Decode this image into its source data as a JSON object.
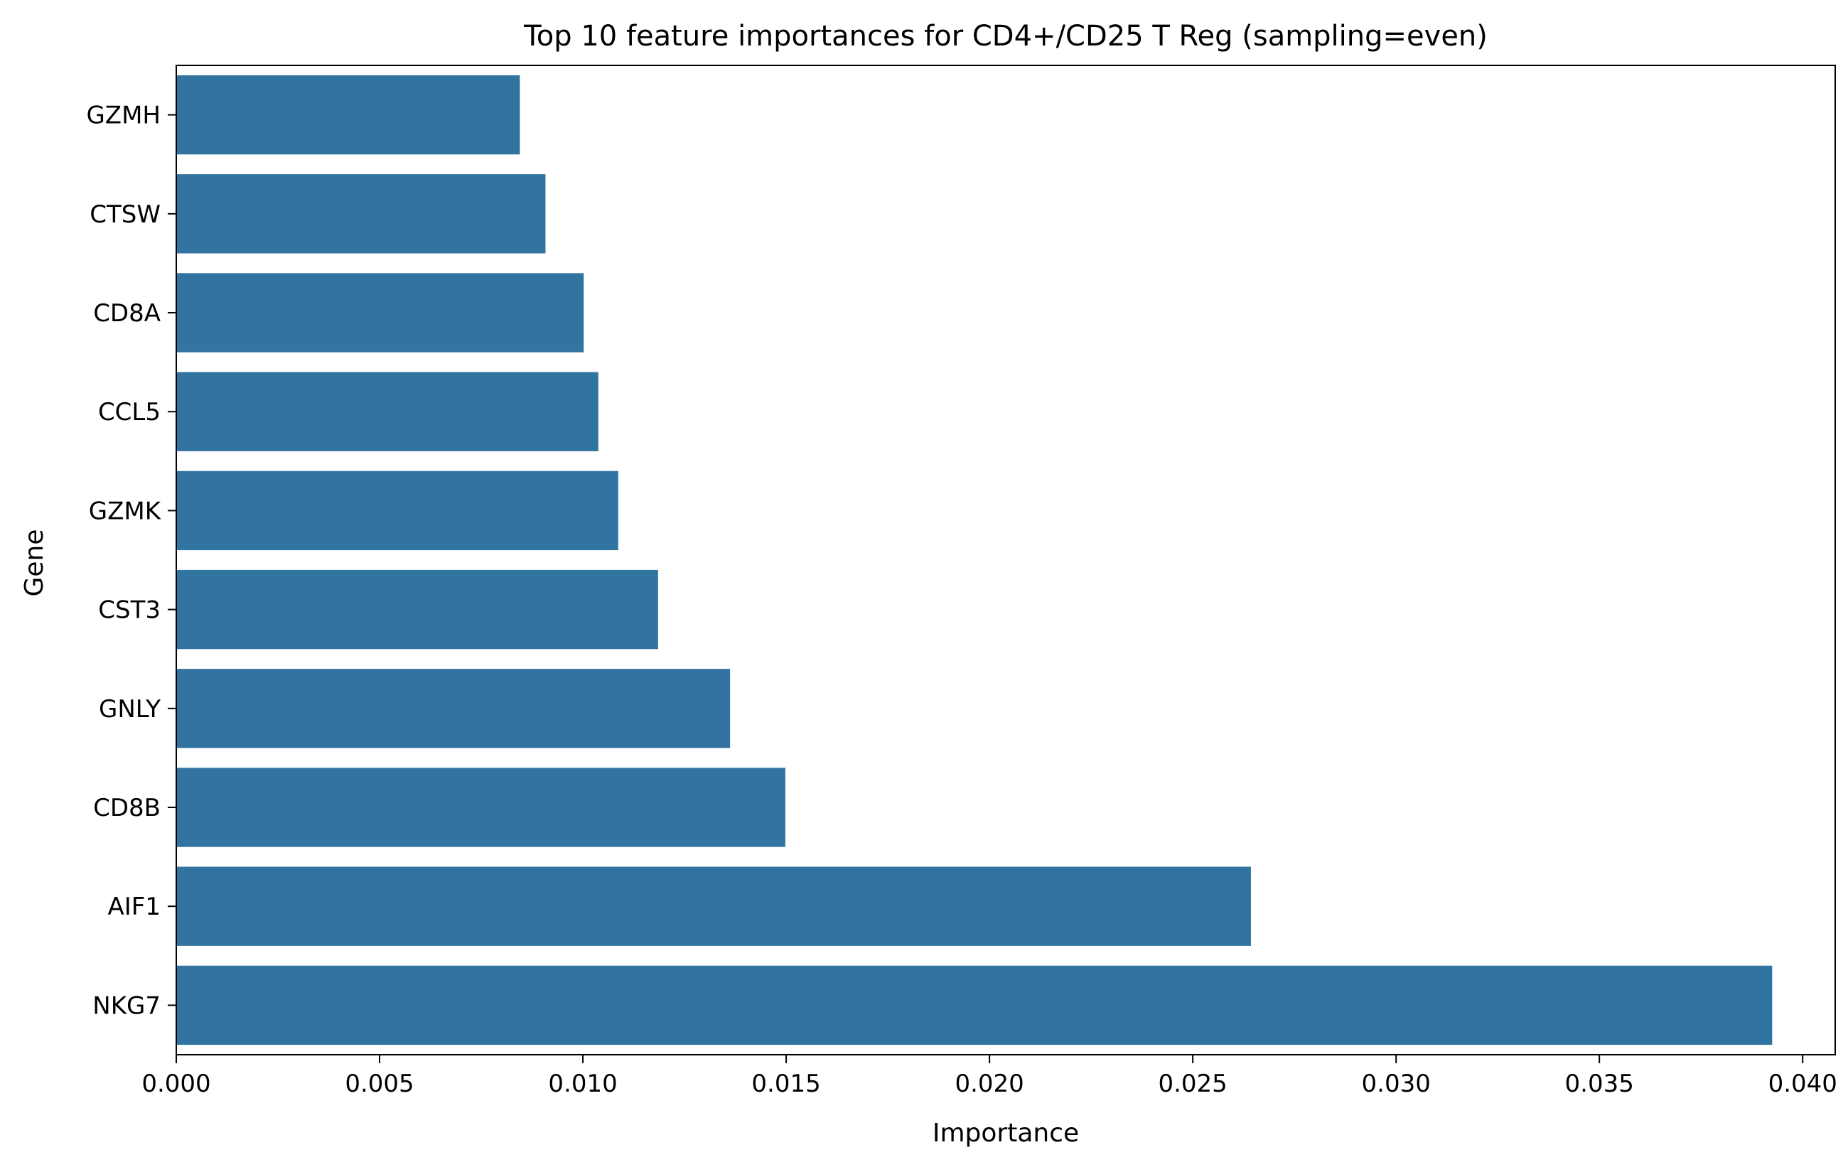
{
  "chart_data": {
    "type": "bar",
    "orientation": "horizontal",
    "title": "Top 10 feature importances for CD4+/CD25 T Reg (sampling=even)",
    "xlabel": "Importance",
    "ylabel": "Gene",
    "categories": [
      "GZMH",
      "CTSW",
      "CD8A",
      "CCL5",
      "GZMK",
      "CST3",
      "GNLY",
      "CD8B",
      "AIF1",
      "NKG7"
    ],
    "values": [
      0.00845,
      0.00908,
      0.01002,
      0.01038,
      0.01087,
      0.01185,
      0.01362,
      0.01498,
      0.02643,
      0.03925
    ],
    "xlim": [
      0.0,
      0.0408
    ],
    "xticks": [
      "0.000",
      "0.005",
      "0.010",
      "0.015",
      "0.020",
      "0.025",
      "0.030",
      "0.035",
      "0.040"
    ],
    "xtick_values": [
      0.0,
      0.005,
      0.01,
      0.015,
      0.02,
      0.025,
      0.03,
      0.035,
      0.04
    ],
    "grid": false,
    "legend": "none",
    "colors": {
      "bar": "#3274a1",
      "axis": "#000000",
      "background": "#ffffff"
    }
  }
}
